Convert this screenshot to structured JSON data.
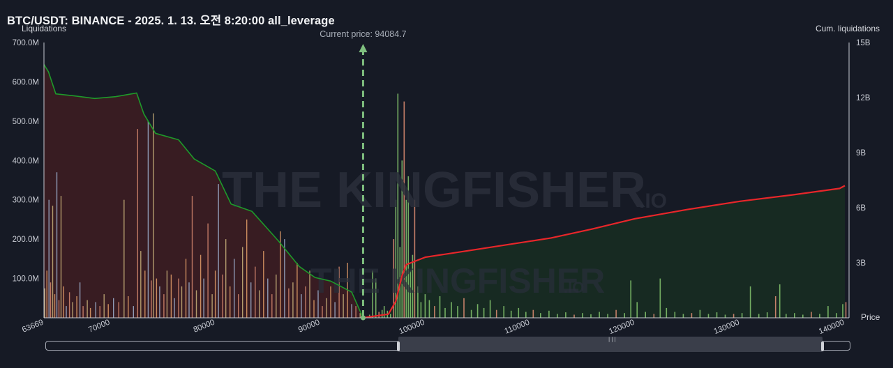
{
  "header": {
    "title": "BTC/USDT: BINANCE - 2025. 1. 13. 오전 8:20:00 all_leverage"
  },
  "chart_data": {
    "type": "bar",
    "title": "BTC/USDT: BINANCE - 2025. 1. 13. 오전 8:20:00 all_leverage",
    "ylabel": "Liquidations",
    "y2label": "Cum. liquidations",
    "xlabel": "Price",
    "current_price_label": "Current price: 94084.7",
    "current_price": 94084.7,
    "xlim": [
      63669,
      140400
    ],
    "ylim": [
      0,
      700000000
    ],
    "y2lim": [
      0,
      15000000000
    ],
    "x_ticks": [
      {
        "value": 63669,
        "label": "63669"
      },
      {
        "value": 70000,
        "label": "70000"
      },
      {
        "value": 80000,
        "label": "80000"
      },
      {
        "value": 90000,
        "label": "90000"
      },
      {
        "value": 100000,
        "label": "100000"
      },
      {
        "value": 110000,
        "label": "110000"
      },
      {
        "value": 120000,
        "label": "120000"
      },
      {
        "value": 130000,
        "label": "130000"
      },
      {
        "value": 140000,
        "label": "140000"
      }
    ],
    "y_ticks": [
      {
        "value": 100000000,
        "label": "100.0M"
      },
      {
        "value": 200000000,
        "label": "200.0M"
      },
      {
        "value": 300000000,
        "label": "300.0M"
      },
      {
        "value": 400000000,
        "label": "400.0M"
      },
      {
        "value": 500000000,
        "label": "500.0M"
      },
      {
        "value": 600000000,
        "label": "600.0M"
      },
      {
        "value": 700000000,
        "label": "700.0M"
      }
    ],
    "y2_ticks": [
      {
        "value": 3000000000,
        "label": "3B"
      },
      {
        "value": 6000000000,
        "label": "6B"
      },
      {
        "value": 9000000000,
        "label": "9B"
      },
      {
        "value": 12000000000,
        "label": "12B"
      },
      {
        "value": 15000000000,
        "label": "15B"
      }
    ],
    "series": [
      {
        "kind": "cumulative-long",
        "color": "#1e9a2a",
        "points": [
          [
            63669,
            13800000000.0
          ],
          [
            64100,
            13400000000.0
          ],
          [
            64800,
            12200000000.0
          ],
          [
            66500,
            12100000000.0
          ],
          [
            68500,
            11950000000.0
          ],
          [
            70500,
            12050000000.0
          ],
          [
            72500,
            12250000000.0
          ],
          [
            73200,
            11100000000.0
          ],
          [
            74300,
            10050000000.0
          ],
          [
            76500,
            9700000000.0
          ],
          [
            78000,
            8650000000.0
          ],
          [
            80000,
            8000000000.0
          ],
          [
            81500,
            6200000000.0
          ],
          [
            83500,
            5800000000.0
          ],
          [
            86000,
            4200000000.0
          ],
          [
            88000,
            2800000000.0
          ],
          [
            89500,
            2200000000.0
          ],
          [
            91000,
            2000000000.0
          ],
          [
            93000,
            1400000000.0
          ],
          [
            94084.7,
            0
          ]
        ]
      },
      {
        "kind": "cumulative-short",
        "color": "#e8262a",
        "points": [
          [
            94084.7,
            0
          ],
          [
            96500,
            200000000.0
          ],
          [
            97200,
            900000000.0
          ],
          [
            97800,
            2300000000.0
          ],
          [
            98200,
            2900000000.0
          ],
          [
            100000,
            3300000000.0
          ],
          [
            104000,
            3650000000.0
          ],
          [
            108000,
            4000000000.0
          ],
          [
            112000,
            4350000000.0
          ],
          [
            116000,
            4850000000.0
          ],
          [
            120000,
            5400000000.0
          ],
          [
            125000,
            5900000000.0
          ],
          [
            130000,
            6350000000.0
          ],
          [
            135000,
            6700000000.0
          ],
          [
            139500,
            7050000000.0
          ],
          [
            140000,
            7200000000.0
          ]
        ]
      }
    ],
    "bars_left": [
      [
        63750,
        75000000.0
      ],
      [
        63950,
        120000000.0
      ],
      [
        64150,
        300000000.0
      ],
      [
        64300,
        90000000.0
      ],
      [
        64500,
        285000000.0
      ],
      [
        64700,
        60000000.0
      ],
      [
        64900,
        370000000.0
      ],
      [
        65100,
        45000000.0
      ],
      [
        65300,
        310000000.0
      ],
      [
        65550,
        80000000.0
      ],
      [
        65800,
        30000000.0
      ],
      [
        66100,
        65000000.0
      ],
      [
        66400,
        40000000.0
      ],
      [
        66800,
        55000000.0
      ],
      [
        67100,
        90000000.0
      ],
      [
        67400,
        30000000.0
      ],
      [
        67800,
        45000000.0
      ],
      [
        68100,
        25000000.0
      ],
      [
        68600,
        40000000.0
      ],
      [
        69000,
        30000000.0
      ],
      [
        69400,
        60000000.0
      ],
      [
        69800,
        35000000.0
      ],
      [
        70300,
        50000000.0
      ],
      [
        70800,
        40000000.0
      ],
      [
        71300,
        300000000.0
      ],
      [
        71700,
        55000000.0
      ],
      [
        72200,
        30000000.0
      ],
      [
        72600,
        480000000.0
      ],
      [
        72900,
        170000000.0
      ],
      [
        73300,
        120000000.0
      ],
      [
        73600,
        500000000.0
      ],
      [
        73900,
        95000000.0
      ],
      [
        74100,
        520000000.0
      ],
      [
        74400,
        100000000.0
      ],
      [
        74700,
        80000000.0
      ],
      [
        75100,
        60000000.0
      ],
      [
        75400,
        120000000.0
      ],
      [
        75800,
        110000000.0
      ],
      [
        76100,
        50000000.0
      ],
      [
        76500,
        100000000.0
      ],
      [
        76800,
        80000000.0
      ],
      [
        77200,
        150000000.0
      ],
      [
        77500,
        90000000.0
      ],
      [
        77800,
        310000000.0
      ],
      [
        78200,
        70000000.0
      ],
      [
        78600,
        160000000.0
      ],
      [
        78900,
        100000000.0
      ],
      [
        79300,
        240000000.0
      ],
      [
        79700,
        60000000.0
      ],
      [
        80000,
        120000000.0
      ],
      [
        80300,
        340000000.0
      ],
      [
        80700,
        110000000.0
      ],
      [
        81000,
        200000000.0
      ],
      [
        81400,
        80000000.0
      ],
      [
        81800,
        150000000.0
      ],
      [
        82200,
        60000000.0
      ],
      [
        82600,
        180000000.0
      ],
      [
        83000,
        250000000.0
      ],
      [
        83400,
        90000000.0
      ],
      [
        83800,
        130000000.0
      ],
      [
        84200,
        70000000.0
      ],
      [
        84600,
        170000000.0
      ],
      [
        85000,
        100000000.0
      ],
      [
        85400,
        60000000.0
      ],
      [
        85800,
        110000000.0
      ],
      [
        86200,
        220000000.0
      ],
      [
        86600,
        200000000.0
      ],
      [
        87000,
        75000000.0
      ],
      [
        87400,
        90000000.0
      ],
      [
        87800,
        140000000.0
      ],
      [
        88200,
        60000000.0
      ],
      [
        88600,
        80000000.0
      ],
      [
        89000,
        120000000.0
      ],
      [
        89400,
        45000000.0
      ],
      [
        89800,
        70000000.0
      ],
      [
        90200,
        30000000.0
      ],
      [
        90600,
        50000000.0
      ],
      [
        91000,
        80000000.0
      ],
      [
        91400,
        40000000.0
      ],
      [
        91800,
        130000000.0
      ],
      [
        92200,
        60000000.0
      ],
      [
        92600,
        140000000.0
      ],
      [
        93000,
        35000000.0
      ],
      [
        93400,
        30000000.0
      ],
      [
        93800,
        12000000.0
      ]
    ],
    "bars_right": [
      [
        94700,
        8000000.0
      ],
      [
        95000,
        120000000.0
      ],
      [
        95300,
        100000000.0
      ],
      [
        95600,
        15000000.0
      ],
      [
        95900,
        20000000.0
      ],
      [
        96100,
        30000000.0
      ],
      [
        96400,
        18000000.0
      ],
      [
        96700,
        10000000.0
      ],
      [
        97000,
        200000000.0
      ],
      [
        97200,
        300000000.0
      ],
      [
        97400,
        570000000.0
      ],
      [
        97600,
        180000000.0
      ],
      [
        97800,
        400000000.0
      ],
      [
        98000,
        550000000.0
      ],
      [
        98200,
        300000000.0
      ],
      [
        98400,
        360000000.0
      ],
      [
        98600,
        120000000.0
      ],
      [
        98800,
        160000000.0
      ],
      [
        99000,
        300000000.0
      ],
      [
        99300,
        80000000.0
      ],
      [
        99600,
        40000000.0
      ],
      [
        100000,
        60000000.0
      ],
      [
        100400,
        45000000.0
      ],
      [
        100900,
        30000000.0
      ],
      [
        101400,
        55000000.0
      ],
      [
        101900,
        25000000.0
      ],
      [
        102500,
        40000000.0
      ],
      [
        103100,
        30000000.0
      ],
      [
        103700,
        50000000.0
      ],
      [
        104400,
        20000000.0
      ],
      [
        105000,
        35000000.0
      ],
      [
        105600,
        25000000.0
      ],
      [
        106200,
        45000000.0
      ],
      [
        106800,
        20000000.0
      ],
      [
        107500,
        30000000.0
      ],
      [
        108200,
        18000000.0
      ],
      [
        108900,
        25000000.0
      ],
      [
        109600,
        15000000.0
      ],
      [
        110300,
        20000000.0
      ],
      [
        111000,
        12000000.0
      ],
      [
        111800,
        18000000.0
      ],
      [
        112600,
        10000000.0
      ],
      [
        113400,
        14000000.0
      ],
      [
        114200,
        8000000.0
      ],
      [
        115000,
        12000000.0
      ],
      [
        115800,
        9000000.0
      ],
      [
        116600,
        15000000.0
      ],
      [
        117400,
        10000000.0
      ],
      [
        118200,
        20000000.0
      ],
      [
        119000,
        12000000.0
      ],
      [
        119600,
        95000000.0
      ],
      [
        120200,
        40000000.0
      ],
      [
        121000,
        15000000.0
      ],
      [
        121800,
        10000000.0
      ],
      [
        122400,
        100000000.0
      ],
      [
        123000,
        25000000.0
      ],
      [
        123800,
        15000000.0
      ],
      [
        124600,
        10000000.0
      ],
      [
        125400,
        12000000.0
      ],
      [
        126200,
        20000000.0
      ],
      [
        127000,
        10000000.0
      ],
      [
        127800,
        14000000.0
      ],
      [
        128600,
        8000000.0
      ],
      [
        129400,
        10000000.0
      ],
      [
        130200,
        12000000.0
      ],
      [
        131000,
        80000000.0
      ],
      [
        131800,
        10000000.0
      ],
      [
        132600,
        14000000.0
      ],
      [
        133400,
        55000000.0
      ],
      [
        133800,
        85000000.0
      ],
      [
        134400,
        10000000.0
      ],
      [
        135200,
        12000000.0
      ],
      [
        136000,
        8000000.0
      ],
      [
        136800,
        15000000.0
      ],
      [
        137600,
        10000000.0
      ],
      [
        138400,
        30000000.0
      ],
      [
        139200,
        12000000.0
      ],
      [
        139800,
        35000000.0
      ],
      [
        140100,
        40000000.0
      ]
    ]
  },
  "watermark": {
    "brand": "THE KINGFISHER",
    "suffix": ".IO"
  },
  "colors": {
    "background": "#161a25",
    "long_fill": "#3a1c22",
    "short_fill": "#172c22",
    "long_line": "#1e9a2a",
    "short_line": "#e8262a",
    "current_price_line": "#7fbf7f"
  },
  "scrollbar": {
    "range_start_fraction": 0.438,
    "range_end_fraction": 0.966
  }
}
